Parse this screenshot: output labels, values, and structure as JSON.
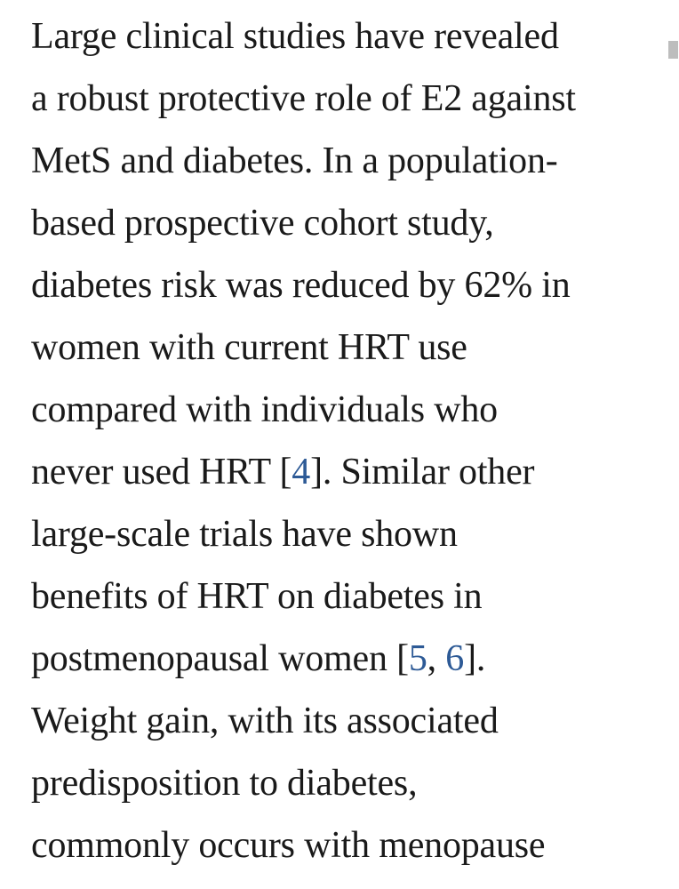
{
  "page": {
    "background_color": "#ffffff",
    "text_color": "#1a1a1a",
    "link_color": "#2d5a96",
    "scrollbar_thumb_color": "#bdbdbd"
  },
  "paragraph": {
    "lines": [
      {
        "segments": [
          {
            "t": "Large clinical studies have revealed"
          }
        ]
      },
      {
        "segments": [
          {
            "t": "a robust protective role of E2 against"
          }
        ]
      },
      {
        "segments": [
          {
            "t": "MetS and diabetes. In a population-"
          }
        ]
      },
      {
        "segments": [
          {
            "t": "based prospective cohort study,"
          }
        ]
      },
      {
        "segments": [
          {
            "t": "diabetes risk was reduced by 62% in"
          }
        ]
      },
      {
        "segments": [
          {
            "t": "women with current HRT use"
          }
        ]
      },
      {
        "segments": [
          {
            "t": "compared with individuals who"
          }
        ]
      },
      {
        "segments": [
          {
            "t": "never used HRT ["
          },
          {
            "t": "4",
            "link": true
          },
          {
            "t": "]. Similar other"
          }
        ]
      },
      {
        "segments": [
          {
            "t": "large-scale trials have shown"
          }
        ]
      },
      {
        "segments": [
          {
            "t": "benefits of HRT on diabetes in"
          }
        ]
      },
      {
        "segments": [
          {
            "t": "postmenopausal women ["
          },
          {
            "t": "5",
            "link": true
          },
          {
            "t": ", "
          },
          {
            "t": "6",
            "link": true
          },
          {
            "t": "]."
          }
        ]
      },
      {
        "segments": [
          {
            "t": "Weight gain, with its associated"
          }
        ]
      },
      {
        "segments": [
          {
            "t": "predisposition to diabetes,"
          }
        ]
      },
      {
        "segments": [
          {
            "t": "commonly occurs with menopause"
          }
        ]
      }
    ]
  }
}
